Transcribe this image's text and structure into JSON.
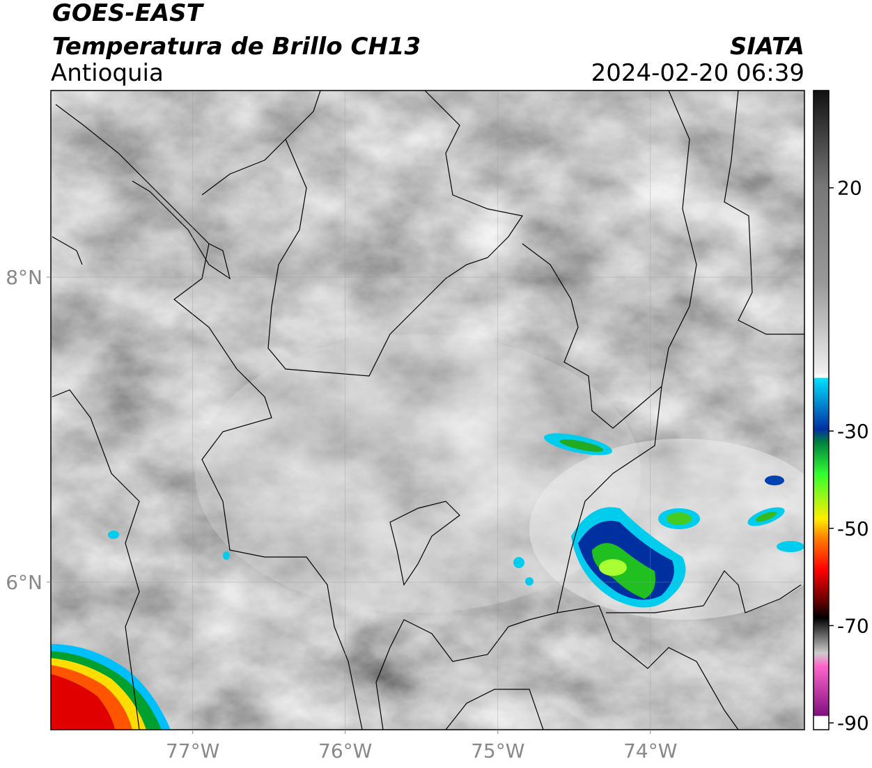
{
  "header": {
    "title": "GOES-EAST",
    "subtitle": "Temperatura de Brillo CH13",
    "region": "Antioquia",
    "source": "SIATA",
    "datetime": "2024-02-20 06:39"
  },
  "map": {
    "xlim": [
      -77.93,
      -72.99
    ],
    "ylim": [
      5.032,
      9.224
    ],
    "xticks": [
      {
        "value": -77,
        "label": "77°W"
      },
      {
        "value": -76,
        "label": "76°W"
      },
      {
        "value": -75,
        "label": "75°W"
      },
      {
        "value": -74,
        "label": "74°W"
      }
    ],
    "yticks": [
      {
        "value": 6,
        "label": "6°N"
      },
      {
        "value": 8,
        "label": "8°N"
      }
    ],
    "grid": true
  },
  "colorbar": {
    "lim": [
      -91.4,
      40
    ],
    "ticks": [
      20,
      -30,
      -50,
      -70,
      -90
    ]
  }
}
